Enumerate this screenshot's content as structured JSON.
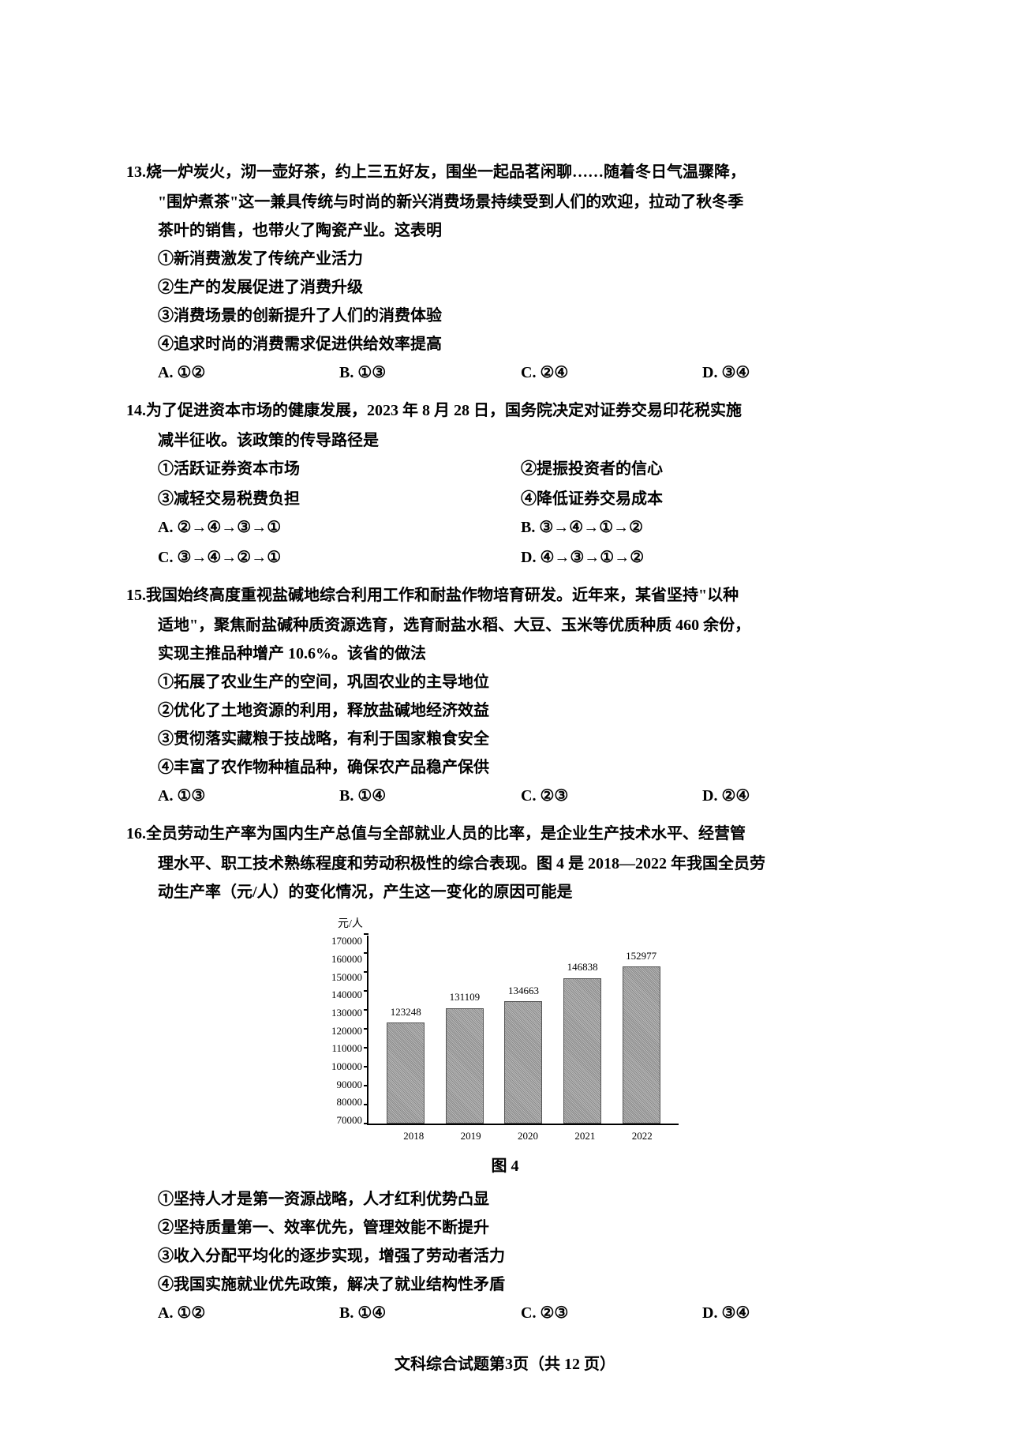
{
  "q13": {
    "stem1": "13.烧一炉炭火，沏一壶好茶，约上三五好友，围坐一起品茗闲聊……随着冬日气温骤降，",
    "stem2": "\"围炉煮茶\"这一兼具传统与时尚的新兴消费场景持续受到人们的欢迎，拉动了秋冬季",
    "stem3": "茶叶的销售，也带火了陶瓷产业。这表明",
    "opt1": "①新消费激发了传统产业活力",
    "opt2": "②生产的发展促进了消费升级",
    "opt3": "③消费场景的创新提升了人们的消费体验",
    "opt4": "④追求时尚的消费需求促进供给效率提高",
    "a": "A. ①②",
    "b": "B. ①③",
    "c": "C. ②④",
    "d": "D. ③④"
  },
  "q14": {
    "stem1": "14.为了促进资本市场的健康发展，2023 年 8 月 28 日，国务院决定对证券交易印花税实施",
    "stem2": "减半征收。该政策的传导路径是",
    "opt1": "①活跃证券资本市场",
    "opt2": "②提振投资者的信心",
    "opt3": "③减轻交易税费负担",
    "opt4": "④降低证券交易成本",
    "a": "A. ②→④→③→①",
    "b": "B. ③→④→①→②",
    "c": "C. ③→④→②→①",
    "d": "D. ④→③→①→②"
  },
  "q15": {
    "stem1": "15.我国始终高度重视盐碱地综合利用工作和耐盐作物培育研发。近年来，某省坚持\"以种",
    "stem2": "适地\"，聚焦耐盐碱种质资源选育，选育耐盐水稻、大豆、玉米等优质种质 460 余份，",
    "stem3": "实现主推品种增产 10.6%。该省的做法",
    "opt1": "①拓展了农业生产的空间，巩固农业的主导地位",
    "opt2": "②优化了土地资源的利用，释放盐碱地经济效益",
    "opt3": "③贯彻落实藏粮于技战略，有利于国家粮食安全",
    "opt4": "④丰富了农作物种植品种，确保农产品稳产保供",
    "a": "A. ①③",
    "b": "B. ①④",
    "c": "C. ②③",
    "d": "D. ②④"
  },
  "q16": {
    "stem1": "16.全员劳动生产率为国内生产总值与全部就业人员的比率，是企业生产技术水平、经营管",
    "stem2": "理水平、职工技术熟练程度和劳动积极性的综合表现。图 4 是 2018—2022 年我国全员劳",
    "stem3": "动生产率（元/人）的变化情况，产生这一变化的原因可能是",
    "chart": {
      "type": "bar",
      "ylabel": "元/人",
      "ymin": 70000,
      "ymax": 170000,
      "yticks": [
        70000,
        80000,
        90000,
        100000,
        110000,
        120000,
        130000,
        140000,
        150000,
        160000,
        170000
      ],
      "categories": [
        "2018",
        "2019",
        "2020",
        "2021",
        "2022"
      ],
      "values": [
        123248,
        131109,
        134663,
        146838,
        152977
      ],
      "bar_fill": "#999999",
      "title": "图 4",
      "background_color": "#ffffff",
      "axis_color": "#000000",
      "label_fontsize": 13,
      "title_fontsize": 20
    },
    "opt1": "①坚持人才是第一资源战略，人才红利优势凸显",
    "opt2": "②坚持质量第一、效率优先，管理效能不断提升",
    "opt3": "③收入分配平均化的逐步实现，增强了劳动者活力",
    "opt4": "④我国实施就业优先政策，解决了就业结构性矛盾",
    "a": "A. ①②",
    "b": "B. ①④",
    "c": "C. ②③",
    "d": "D. ③④"
  },
  "footer": "文科综合试题第3页（共 12 页）"
}
